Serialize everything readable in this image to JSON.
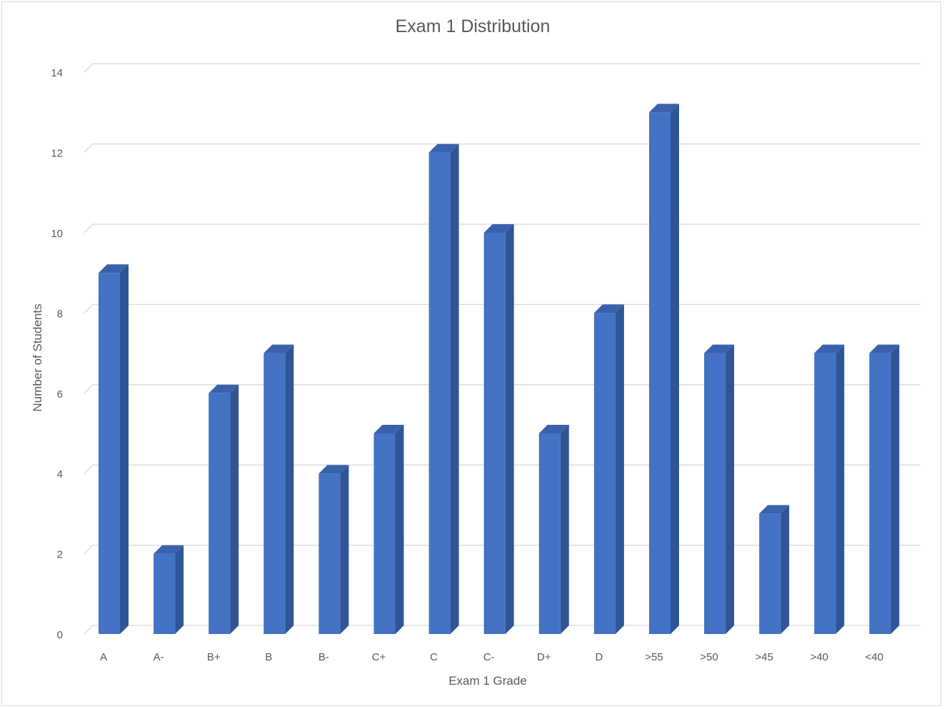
{
  "chart_data": {
    "type": "bar",
    "style": "3d-column",
    "title": "Exam 1 Distribution",
    "xlabel": "Exam 1 Grade",
    "ylabel": "Number of Students",
    "categories": [
      "A",
      "A-",
      "B+",
      "B",
      "B-",
      "C+",
      "C",
      "C-",
      "D+",
      "D",
      ">55",
      ">50",
      ">45",
      ">40",
      "<40"
    ],
    "values": [
      9,
      2,
      6,
      7,
      4,
      5,
      12,
      10,
      5,
      8,
      13,
      7,
      3,
      7,
      7
    ],
    "ylim": [
      0,
      14
    ],
    "yticks": [
      0,
      2,
      4,
      6,
      8,
      10,
      12,
      14
    ],
    "grid": true,
    "legend": "none",
    "colors": {
      "bar_front": "#4472C4",
      "bar_side": "#2F5597",
      "bar_top": "#3A62AC",
      "grid": "#D9D9D9",
      "text": "#595959"
    }
  }
}
